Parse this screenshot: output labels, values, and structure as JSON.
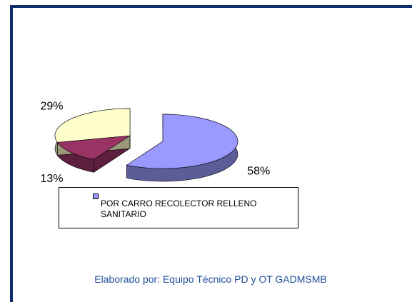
{
  "chart_data": {
    "type": "pie",
    "three_d": true,
    "categories": [
      "POR CARRO RECOLECTOR RELLENO SANITARIO",
      null,
      null
    ],
    "values": [
      58,
      13,
      29
    ],
    "value_labels": [
      "58%",
      "13%",
      "29%"
    ],
    "colors": [
      "#9999ff",
      "#993366",
      "#ffffcc"
    ],
    "note": "Elaborado por: Equipo Técnico PD y OT GADMSMB"
  }
}
